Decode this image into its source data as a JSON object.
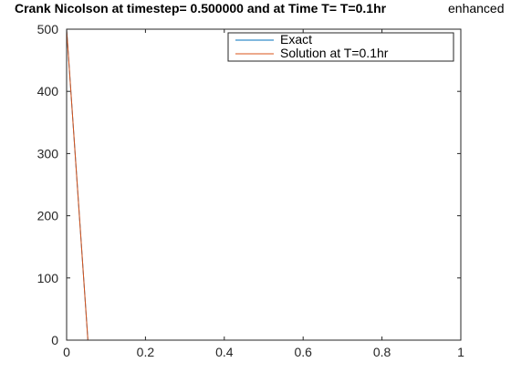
{
  "chart_data": {
    "type": "line",
    "title": "Crank Nicolson at timestep= 0.500000 and at Time T= T=0.1hr",
    "title_suffix": "enhanced",
    "xlabel": "",
    "ylabel": "",
    "xlim": [
      0,
      1
    ],
    "ylim": [
      0,
      500
    ],
    "xticks": [
      0,
      0.2,
      0.4,
      0.6,
      0.8,
      1
    ],
    "xtick_labels": [
      "0",
      "0.2",
      "0.4",
      "0.6",
      "0.8",
      "1"
    ],
    "yticks": [
      0,
      100,
      200,
      300,
      400,
      500
    ],
    "ytick_labels": [
      "0",
      "100",
      "200",
      "300",
      "400",
      "500"
    ],
    "grid": false,
    "legend_position": "top-right",
    "series": [
      {
        "name": "Exact",
        "color": "#0072BD",
        "x": [
          0,
          0.054
        ],
        "y": [
          500,
          0
        ]
      },
      {
        "name": "Solution at T=0.1hr",
        "color": "#D95319",
        "x": [
          0,
          0.054
        ],
        "y": [
          500,
          0
        ]
      }
    ]
  }
}
